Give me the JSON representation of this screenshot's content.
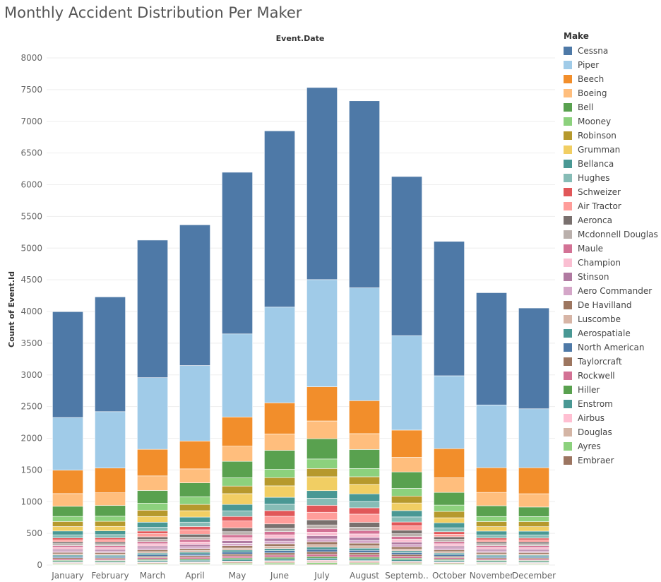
{
  "chart_data": {
    "type": "bar",
    "stacked": true,
    "title": "Monthly Accident Distribution Per Maker",
    "column_header": "Event.Date",
    "xlabel": "",
    "ylabel": "Count of Event.Id",
    "ylim": [
      0,
      8000
    ],
    "yticks": [
      0,
      500,
      1000,
      1500,
      2000,
      2500,
      3000,
      3500,
      4000,
      4500,
      5000,
      5500,
      6000,
      6500,
      7000,
      7500,
      8000
    ],
    "grid": true,
    "legend_title": "Make",
    "legend_position": "right",
    "categories": [
      "January",
      "February",
      "March",
      "April",
      "May",
      "June",
      "July",
      "August",
      "Septemb..",
      "October",
      "November",
      "December"
    ],
    "series": [
      {
        "name": "Embraer",
        "color": "#9c7561",
        "values": [
          5,
          5,
          6,
          6,
          8,
          10,
          12,
          11,
          8,
          6,
          5,
          5
        ]
      },
      {
        "name": "Ayres",
        "color": "#8cd17d",
        "values": [
          12,
          10,
          14,
          16,
          20,
          22,
          25,
          22,
          18,
          14,
          11,
          10
        ]
      },
      {
        "name": "Douglas",
        "color": "#d4b5a5",
        "values": [
          15,
          15,
          18,
          18,
          20,
          22,
          24,
          22,
          20,
          18,
          15,
          15
        ]
      },
      {
        "name": "Airbus",
        "color": "#ffbfd2",
        "values": [
          10,
          10,
          12,
          12,
          14,
          15,
          16,
          15,
          14,
          12,
          10,
          10
        ]
      },
      {
        "name": "Enstrom",
        "color": "#499894",
        "values": [
          18,
          18,
          22,
          24,
          28,
          30,
          32,
          30,
          26,
          22,
          18,
          18
        ]
      },
      {
        "name": "Hiller",
        "color": "#59a14f",
        "values": [
          15,
          15,
          18,
          20,
          22,
          24,
          25,
          24,
          22,
          18,
          15,
          15
        ]
      },
      {
        "name": "Rockwell",
        "color": "#d37295",
        "values": [
          22,
          22,
          26,
          28,
          32,
          35,
          38,
          36,
          30,
          26,
          22,
          22
        ]
      },
      {
        "name": "Taylorcraft",
        "color": "#9d7660",
        "values": [
          18,
          18,
          22,
          24,
          30,
          34,
          38,
          36,
          28,
          22,
          18,
          18
        ]
      },
      {
        "name": "North American",
        "color": "#4e79a7",
        "values": [
          22,
          22,
          26,
          28,
          32,
          35,
          38,
          36,
          30,
          26,
          22,
          22
        ]
      },
      {
        "name": "Aerospatiale",
        "color": "#499894",
        "values": [
          20,
          20,
          24,
          26,
          30,
          32,
          35,
          33,
          28,
          24,
          20,
          20
        ]
      },
      {
        "name": "Luscombe",
        "color": "#d7b5a6",
        "values": [
          20,
          20,
          24,
          26,
          32,
          36,
          40,
          38,
          30,
          24,
          20,
          20
        ]
      },
      {
        "name": "De Havilland",
        "color": "#9d7660",
        "values": [
          22,
          22,
          28,
          30,
          36,
          40,
          44,
          42,
          34,
          28,
          22,
          22
        ]
      },
      {
        "name": "Aero Commander",
        "color": "#d4a6c8",
        "values": [
          25,
          25,
          30,
          32,
          38,
          42,
          45,
          43,
          36,
          30,
          25,
          25
        ]
      },
      {
        "name": "Stinson",
        "color": "#b07aa1",
        "values": [
          25,
          25,
          30,
          34,
          42,
          46,
          50,
          48,
          38,
          30,
          25,
          25
        ]
      },
      {
        "name": "Champion",
        "color": "#fabfd2",
        "values": [
          30,
          30,
          36,
          40,
          48,
          54,
          58,
          55,
          45,
          36,
          30,
          30
        ]
      },
      {
        "name": "Maule",
        "color": "#d37295",
        "values": [
          28,
          28,
          34,
          38,
          46,
          50,
          55,
          52,
          42,
          34,
          28,
          28
        ]
      },
      {
        "name": "Mcdonnell Douglas",
        "color": "#bab0ac",
        "values": [
          30,
          30,
          36,
          40,
          48,
          52,
          58,
          55,
          45,
          36,
          30,
          30
        ]
      },
      {
        "name": "Aeronca",
        "color": "#79706e",
        "values": [
          30,
          30,
          40,
          45,
          60,
          70,
          80,
          75,
          55,
          40,
          30,
          30
        ]
      },
      {
        "name": "Air Tractor",
        "color": "#ff9d9a",
        "values": [
          30,
          35,
          50,
          70,
          110,
          120,
          120,
          130,
          70,
          40,
          30,
          30
        ]
      },
      {
        "name": "Schweizer",
        "color": "#e15759",
        "values": [
          30,
          30,
          40,
          50,
          70,
          90,
          110,
          100,
          60,
          40,
          30,
          30
        ]
      },
      {
        "name": "Hughes",
        "color": "#86bcb6",
        "values": [
          50,
          50,
          60,
          70,
          90,
          100,
          110,
          100,
          80,
          60,
          50,
          50
        ]
      },
      {
        "name": "Bellanca",
        "color": "#499894",
        "values": [
          60,
          60,
          80,
          80,
          100,
          110,
          120,
          120,
          100,
          80,
          60,
          60
        ]
      },
      {
        "name": "Grumman",
        "color": "#f1ce63",
        "values": [
          70,
          70,
          90,
          100,
          170,
          180,
          220,
          150,
          120,
          80,
          70,
          70
        ]
      },
      {
        "name": "Robinson",
        "color": "#b6992d",
        "values": [
          80,
          80,
          100,
          100,
          120,
          130,
          130,
          120,
          110,
          100,
          80,
          80
        ]
      },
      {
        "name": "Mooney",
        "color": "#8cd17d",
        "values": [
          80,
          80,
          110,
          120,
          130,
          130,
          150,
          130,
          120,
          100,
          80,
          80
        ]
      },
      {
        "name": "Bell",
        "color": "#59a14f",
        "values": [
          160,
          170,
          200,
          220,
          260,
          300,
          320,
          300,
          260,
          200,
          170,
          150
        ]
      },
      {
        "name": "Boeing",
        "color": "#ffbe7d",
        "values": [
          200,
          200,
          230,
          220,
          240,
          260,
          280,
          250,
          230,
          230,
          210,
          210
        ]
      },
      {
        "name": "Beech",
        "color": "#f28e2b",
        "values": [
          370,
          390,
          420,
          440,
          460,
          490,
          540,
          520,
          430,
          460,
          390,
          410
        ]
      },
      {
        "name": "Piper",
        "color": "#a0cbe8",
        "values": [
          830,
          890,
          1130,
          1190,
          1310,
          1510,
          1690,
          1780,
          1490,
          1150,
          990,
          930
        ]
      },
      {
        "name": "Cessna",
        "color": "#4e79a7",
        "values": [
          1670,
          1810,
          2170,
          2220,
          2550,
          2780,
          3030,
          2950,
          2510,
          2120,
          1770,
          1590
        ]
      }
    ]
  },
  "legend": {
    "title": "Make",
    "items": [
      {
        "label": "Cessna",
        "color": "#4e79a7"
      },
      {
        "label": "Piper",
        "color": "#a0cbe8"
      },
      {
        "label": "Beech",
        "color": "#f28e2b"
      },
      {
        "label": "Boeing",
        "color": "#ffbe7d"
      },
      {
        "label": "Bell",
        "color": "#59a14f"
      },
      {
        "label": "Mooney",
        "color": "#8cd17d"
      },
      {
        "label": "Robinson",
        "color": "#b6992d"
      },
      {
        "label": "Grumman",
        "color": "#f1ce63"
      },
      {
        "label": "Bellanca",
        "color": "#499894"
      },
      {
        "label": "Hughes",
        "color": "#86bcb6"
      },
      {
        "label": "Schweizer",
        "color": "#e15759"
      },
      {
        "label": "Air Tractor",
        "color": "#ff9d9a"
      },
      {
        "label": "Aeronca",
        "color": "#79706e"
      },
      {
        "label": "Mcdonnell Douglas",
        "color": "#bab0ac"
      },
      {
        "label": "Maule",
        "color": "#d37295"
      },
      {
        "label": "Champion",
        "color": "#fabfd2"
      },
      {
        "label": "Stinson",
        "color": "#b07aa1"
      },
      {
        "label": "Aero Commander",
        "color": "#d4a6c8"
      },
      {
        "label": "De Havilland",
        "color": "#9d7660"
      },
      {
        "label": "Luscombe",
        "color": "#d7b5a6"
      },
      {
        "label": "Aerospatiale",
        "color": "#499894"
      },
      {
        "label": "North American",
        "color": "#4e79a7"
      },
      {
        "label": "Taylorcraft",
        "color": "#9d7660"
      },
      {
        "label": "Rockwell",
        "color": "#d37295"
      },
      {
        "label": "Hiller",
        "color": "#59a14f"
      },
      {
        "label": "Enstrom",
        "color": "#499894"
      },
      {
        "label": "Airbus",
        "color": "#ffbfd2"
      },
      {
        "label": "Douglas",
        "color": "#d4b5a5"
      },
      {
        "label": "Ayres",
        "color": "#8cd17d"
      },
      {
        "label": "Embraer",
        "color": "#9c7561"
      }
    ]
  }
}
